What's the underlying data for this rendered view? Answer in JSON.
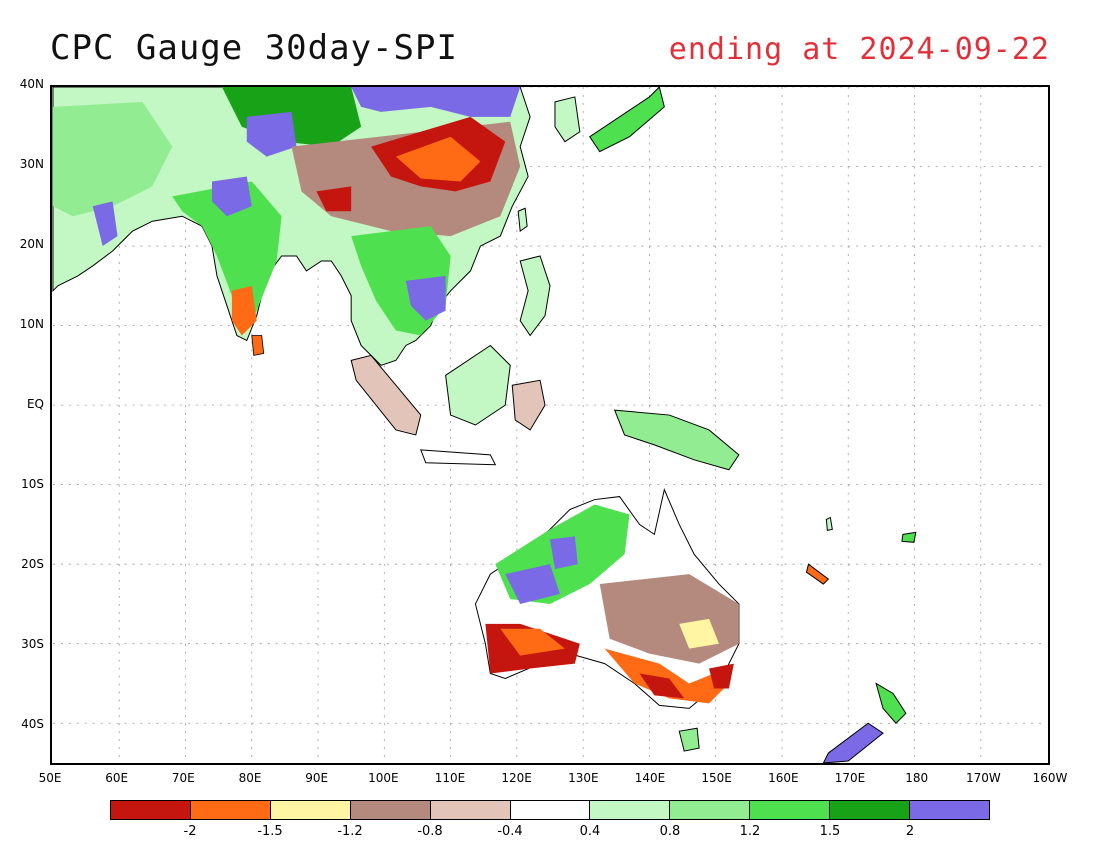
{
  "header": {
    "title": "CPC Gauge 30day-SPI",
    "subtitle": "ending at 2024-09-22"
  },
  "map": {
    "lat_labels": [
      "40N",
      "30N",
      "20N",
      "10N",
      "EQ",
      "10S",
      "20S",
      "30S",
      "40S"
    ],
    "lon_labels": [
      "50E",
      "60E",
      "70E",
      "80E",
      "90E",
      "100E",
      "110E",
      "120E",
      "130E",
      "140E",
      "150E",
      "160E",
      "170E",
      "180",
      "170W",
      "160W"
    ],
    "lat_range": [
      -45,
      40
    ],
    "lon_range": [
      50,
      200
    ],
    "grid": true,
    "regions": [
      {
        "name": "India",
        "class": "green",
        "color": "#4ee04e"
      },
      {
        "name": "Southeast Asia",
        "class": "blue",
        "color": "#7a6ae6"
      },
      {
        "name": "South China",
        "class": "dry",
        "color": "#c4160f"
      },
      {
        "name": "Southwest Australia",
        "class": "dry",
        "color": "#ff6a14"
      },
      {
        "name": "Southeast Australia",
        "class": "dry",
        "color": "#ff6a14"
      },
      {
        "name": "Northern Australia",
        "class": "wet",
        "color": "#4ee04e"
      }
    ]
  },
  "legend": {
    "colors": [
      "#c4160f",
      "#ff6a14",
      "#fff5a3",
      "#b48a7f",
      "#e3c4b9",
      "#ffffff",
      "#c3f7c3",
      "#92ec92",
      "#4ee04e",
      "#18a218",
      "#7a6ae6"
    ],
    "ticks": [
      "-2",
      "-1.5",
      "-1.2",
      "-0.8",
      "-0.4",
      "0.4",
      "0.8",
      "1.2",
      "1.5",
      "2"
    ]
  }
}
